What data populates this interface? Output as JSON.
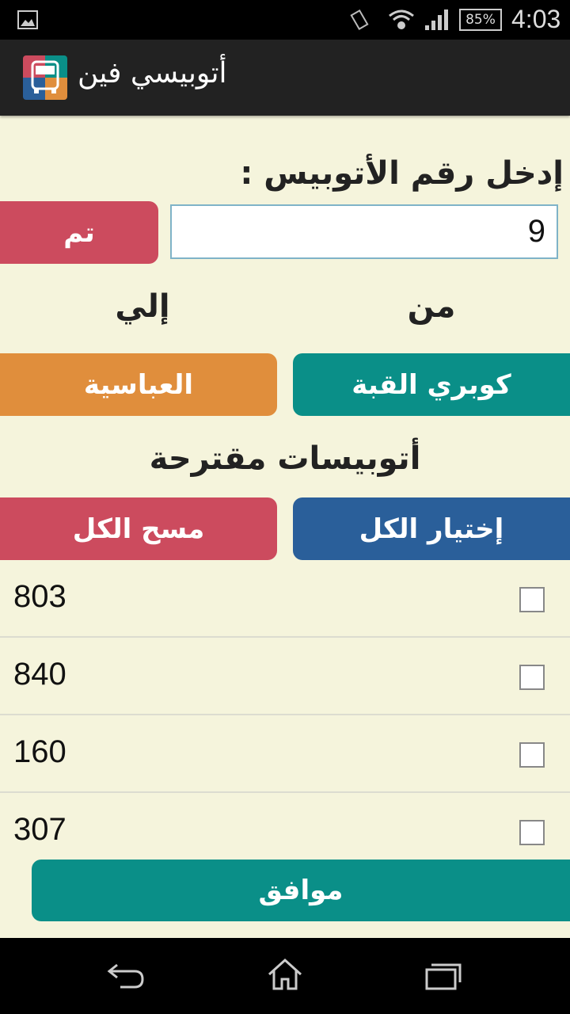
{
  "status_bar": {
    "battery": "85%",
    "time": "4:03",
    "icons": [
      "image-icon",
      "vibrate-icon",
      "wifi-icon",
      "signal-icon",
      "battery-icon"
    ]
  },
  "app_bar": {
    "title": "أتوبيسي فين",
    "logo": "bus-logo-icon"
  },
  "form": {
    "label": "إدخل رقم الأتوبيس :",
    "bus_number": "9",
    "done_label": "تم",
    "from_label": "من",
    "to_label": "إلي",
    "from_value": "كوبري القبة",
    "to_value": "العباسية"
  },
  "suggested": {
    "heading": "أتوبيسات مقترحة",
    "select_all": "إختيار الكل",
    "clear_all": "مسح الكل",
    "items": [
      {
        "number": "803",
        "checked": false
      },
      {
        "number": "840",
        "checked": false
      },
      {
        "number": "160",
        "checked": false
      },
      {
        "number": "307",
        "checked": false
      }
    ]
  },
  "ok_label": "موافق",
  "colors": {
    "red": "#cc4b5e",
    "teal": "#0a8f88",
    "orange": "#e08e3c",
    "blue": "#2a5f9a",
    "background": "#f5f4dc"
  }
}
